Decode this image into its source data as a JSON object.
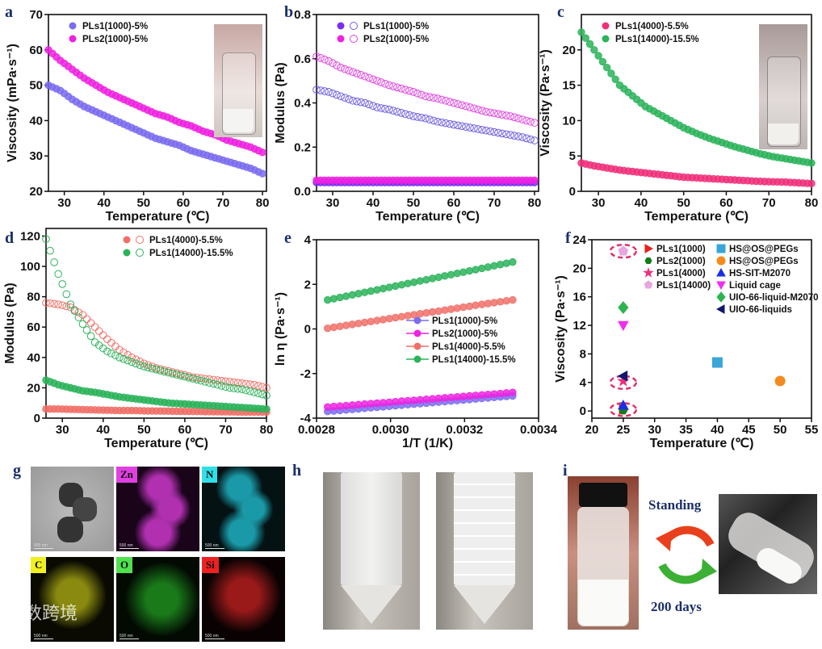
{
  "panel_letters": {
    "a": "a",
    "b": "b",
    "c": "c",
    "d": "d",
    "e": "e",
    "f": "f",
    "g": "g",
    "h": "h",
    "i": "i"
  },
  "chart_data": [
    {
      "panel": "a",
      "type": "line",
      "xlabel": "Temperature (℃)",
      "ylabel": "Viscosity (mPa·s⁻¹)",
      "xlim": [
        26,
        81
      ],
      "ylim": [
        20,
        70
      ],
      "xticks": [
        "30",
        "40",
        "50",
        "60",
        "70",
        "80"
      ],
      "yticks": [
        "20",
        "30",
        "40",
        "50",
        "60",
        "70"
      ],
      "legend": "top-left",
      "x": [
        26,
        29,
        32,
        35,
        38,
        41,
        44,
        47,
        50,
        53,
        56,
        59,
        62,
        65,
        68,
        71,
        74,
        77,
        80
      ],
      "series": [
        {
          "name": "PLs1(1000)-5%",
          "color": "#7b6cf0",
          "marker": "filled",
          "values": [
            50,
            48.5,
            46,
            44,
            42.5,
            41,
            39.5,
            38,
            36.5,
            35,
            34,
            33,
            31.5,
            30.5,
            29.5,
            28.5,
            27.5,
            26.5,
            25
          ]
        },
        {
          "name": "PLs2(1000)-5%",
          "color": "#ee22e0",
          "marker": "filled",
          "values": [
            60,
            57,
            54.5,
            52,
            50,
            48,
            46.5,
            45,
            43.5,
            42,
            41,
            39.5,
            38.5,
            37,
            36,
            34.5,
            33.5,
            32.5,
            31
          ]
        }
      ]
    },
    {
      "panel": "b",
      "type": "line",
      "xlabel": "Temperature (℃)",
      "ylabel": "Modulus (Pa)",
      "xlim": [
        26,
        81
      ],
      "ylim": [
        0,
        0.8
      ],
      "xticks": [
        "30",
        "40",
        "50",
        "60",
        "70",
        "80"
      ],
      "yticks": [
        "0.0",
        "0.2",
        "0.4",
        "0.6",
        "0.8"
      ],
      "legend": "top-left",
      "x": [
        26,
        29,
        32,
        35,
        38,
        41,
        44,
        47,
        50,
        53,
        56,
        59,
        62,
        65,
        68,
        71,
        74,
        77,
        80
      ],
      "series": [
        {
          "name": "PLs1(1000)-5%",
          "color": "#7b2cf0",
          "marker": "filled",
          "values": [
            0.04,
            0.04,
            0.04,
            0.04,
            0.04,
            0.04,
            0.04,
            0.04,
            0.04,
            0.04,
            0.04,
            0.04,
            0.04,
            0.04,
            0.04,
            0.04,
            0.04,
            0.04,
            0.04
          ]
        },
        {
          "name": "PLs2(1000)-5%",
          "color": "#ee22e0",
          "marker": "filled",
          "values": [
            0.05,
            0.05,
            0.05,
            0.05,
            0.05,
            0.05,
            0.05,
            0.05,
            0.05,
            0.05,
            0.05,
            0.05,
            0.05,
            0.05,
            0.05,
            0.05,
            0.05,
            0.05,
            0.05
          ]
        },
        {
          "name": "",
          "color": "#6a5ce0",
          "marker": "open",
          "values": [
            0.46,
            0.45,
            0.43,
            0.41,
            0.4,
            0.38,
            0.37,
            0.355,
            0.34,
            0.33,
            0.315,
            0.305,
            0.295,
            0.285,
            0.275,
            0.265,
            0.255,
            0.245,
            0.23
          ]
        },
        {
          "name": "",
          "color": "#e040e0",
          "marker": "open",
          "values": [
            0.61,
            0.59,
            0.56,
            0.54,
            0.52,
            0.5,
            0.48,
            0.465,
            0.45,
            0.43,
            0.42,
            0.405,
            0.39,
            0.375,
            0.36,
            0.35,
            0.34,
            0.325,
            0.31
          ]
        }
      ]
    },
    {
      "panel": "c",
      "type": "line",
      "xlabel": "Temperature (℃)",
      "ylabel": "Viscosity (Pa·s⁻¹)",
      "xlim": [
        26,
        80
      ],
      "ylim": [
        0,
        25
      ],
      "xticks": [
        "30",
        "40",
        "50",
        "60",
        "70",
        "80"
      ],
      "yticks": [
        "0",
        "5",
        "10",
        "15",
        "20"
      ],
      "legend": "top-left",
      "x": [
        26,
        29,
        32,
        35,
        38,
        41,
        44,
        47,
        50,
        53,
        56,
        59,
        62,
        65,
        68,
        71,
        74,
        77,
        80
      ],
      "series": [
        {
          "name": "PLs1(4000)-5.5%",
          "color": "#f0307a",
          "marker": "filled",
          "values": [
            4.0,
            3.6,
            3.3,
            3.0,
            2.8,
            2.6,
            2.4,
            2.2,
            2.0,
            1.9,
            1.8,
            1.7,
            1.6,
            1.5,
            1.4,
            1.35,
            1.3,
            1.2,
            1.1
          ]
        },
        {
          "name": "PLs1(14000)-15.5%",
          "color": "#2bb35a",
          "marker": "filled",
          "values": [
            22.5,
            20,
            17.5,
            15,
            13.5,
            12,
            11,
            10,
            9,
            8.2,
            7.5,
            6.9,
            6.3,
            5.8,
            5.3,
            4.9,
            4.6,
            4.3,
            4.0
          ]
        }
      ]
    },
    {
      "panel": "d",
      "type": "line",
      "xlabel": "Temperature (℃)",
      "ylabel": "Modulus (Pa)",
      "xlim": [
        26,
        80
      ],
      "ylim": [
        0,
        125
      ],
      "xticks": [
        "30",
        "40",
        "50",
        "60",
        "70",
        "80"
      ],
      "yticks": [
        "0",
        "20",
        "40",
        "60",
        "80",
        "100",
        "120"
      ],
      "legend": "top-right",
      "x": [
        26,
        29,
        32,
        35,
        38,
        41,
        44,
        47,
        50,
        53,
        56,
        59,
        62,
        65,
        68,
        71,
        74,
        77,
        80
      ],
      "series": [
        {
          "name": "PLs1(4000)-5.5%",
          "color": "#f07068",
          "marker": "filled",
          "values": [
            6,
            6,
            5.8,
            5.6,
            5.4,
            5.2,
            5,
            5,
            4.8,
            4.7,
            4.6,
            4.5,
            4.4,
            4.3,
            4.2,
            4.1,
            4,
            4,
            4
          ]
        },
        {
          "name": "",
          "color": "#f07068",
          "marker": "open",
          "values": [
            76,
            75,
            73,
            68,
            60,
            52,
            45,
            40,
            36,
            33,
            31,
            29,
            27,
            26,
            25,
            24,
            23,
            22,
            20
          ]
        },
        {
          "name": "PLs1(14000)-15.5%",
          "color": "#2bb35a",
          "marker": "filled",
          "values": [
            25,
            22,
            20,
            18,
            17,
            15.5,
            14,
            13,
            12,
            11,
            10,
            9.5,
            9,
            8.5,
            8,
            7.5,
            7,
            6.5,
            6
          ]
        },
        {
          "name": "",
          "color": "#2bb35a",
          "marker": "open",
          "values": [
            118,
            95,
            75,
            62,
            50,
            44,
            40,
            37,
            34,
            32,
            30,
            28,
            26,
            24,
            22,
            20,
            19,
            17,
            15
          ]
        }
      ]
    },
    {
      "panel": "e",
      "type": "line",
      "xlabel": "1/T (1/K)",
      "ylabel": "ln η (Pa·s⁻¹)",
      "xlim": [
        0.0028,
        0.0034
      ],
      "ylim": [
        -4,
        4
      ],
      "xticks": [
        "0.0028",
        "0.0030",
        "0.0032",
        "0.0034"
      ],
      "yticks": [
        "-4",
        "-2",
        "0",
        "2",
        "4"
      ],
      "legend": "center-right",
      "x": [
        0.00283,
        0.00288,
        0.00293,
        0.00298,
        0.00303,
        0.00308,
        0.00313,
        0.00318,
        0.00323,
        0.00328,
        0.00333
      ],
      "series": [
        {
          "name": "PLs1(1000)-5%",
          "color": "#7b6cf0",
          "marker": "filled",
          "values": [
            -3.7,
            -3.63,
            -3.56,
            -3.49,
            -3.42,
            -3.35,
            -3.28,
            -3.21,
            -3.14,
            -3.07,
            -3.0
          ]
        },
        {
          "name": "PLs2(1000)-5%",
          "color": "#ee22e0",
          "marker": "filled",
          "values": [
            -3.5,
            -3.44,
            -3.37,
            -3.31,
            -3.24,
            -3.18,
            -3.11,
            -3.05,
            -2.98,
            -2.92,
            -2.85
          ]
        },
        {
          "name": "PLs1(4000)-5.5%",
          "color": "#f07068",
          "marker": "filled",
          "values": [
            0.03,
            0.16,
            0.29,
            0.42,
            0.55,
            0.68,
            0.8,
            0.93,
            1.06,
            1.18,
            1.3
          ]
        },
        {
          "name": "PLs1(14000)-15.5%",
          "color": "#2bb35a",
          "marker": "filled",
          "values": [
            1.3,
            1.47,
            1.64,
            1.81,
            1.98,
            2.15,
            2.32,
            2.49,
            2.66,
            2.83,
            3.0
          ]
        }
      ]
    },
    {
      "panel": "f",
      "type": "scatter",
      "xlabel": "Temperature (℃)",
      "ylabel": "Viscosity (Pa·s⁻¹)",
      "xlim": [
        20,
        55
      ],
      "ylim": [
        -1,
        24
      ],
      "xticks": [
        "20",
        "25",
        "30",
        "35",
        "40",
        "45",
        "50",
        "55"
      ],
      "yticks": [
        "0",
        "4",
        "8",
        "12",
        "16",
        "20",
        "24"
      ],
      "legend": "top-right",
      "points": [
        {
          "name": "PLs1(1000)",
          "color": "#e8201c",
          "shape": "tri-right",
          "x": 25,
          "y": 0.2
        },
        {
          "name": "PLs2(1000)",
          "color": "#137a1a",
          "shape": "hexagon",
          "x": 25,
          "y": 0.05
        },
        {
          "name": "PLs1(4000)",
          "color": "#ee2f7a",
          "shape": "star",
          "x": 25,
          "y": 4.2
        },
        {
          "name": "PLs1(14000)",
          "color": "#e7a6e0",
          "shape": "pentagon",
          "x": 25,
          "y": 22.4
        },
        {
          "name": "HS@OS@PEGs",
          "color": "#3aa6d8",
          "shape": "square",
          "x": 40,
          "y": 6.8
        },
        {
          "name": "HS@OS@PEGs",
          "color": "#f58a1f",
          "shape": "circle",
          "x": 50,
          "y": 4.2
        },
        {
          "name": "HS-SIT-M2070",
          "color": "#1a2ee8",
          "shape": "tri-up",
          "x": 25,
          "y": 0.8
        },
        {
          "name": "Liquid cage",
          "color": "#f02ef0",
          "shape": "tri-down",
          "x": 25,
          "y": 12
        },
        {
          "name": "UIO-66-liquid-M2070",
          "color": "#2cb44e",
          "shape": "diamond",
          "x": 25,
          "y": 14.5
        },
        {
          "name": "UIO-66-liquids",
          "color": "#10186e",
          "shape": "tri-left",
          "x": 25,
          "y": 4.9
        }
      ],
      "highlight_ellipses_y": [
        22.4,
        4,
        0.2
      ]
    }
  ],
  "panel_g": {
    "labels": [
      "Zn",
      "N",
      "C",
      "O",
      "Si"
    ],
    "scale_bar": "500 nm"
  },
  "panel_i": {
    "arrow_top_text": "Standing",
    "arrow_bottom_text": "200 days"
  },
  "watermark": "大数跨境"
}
